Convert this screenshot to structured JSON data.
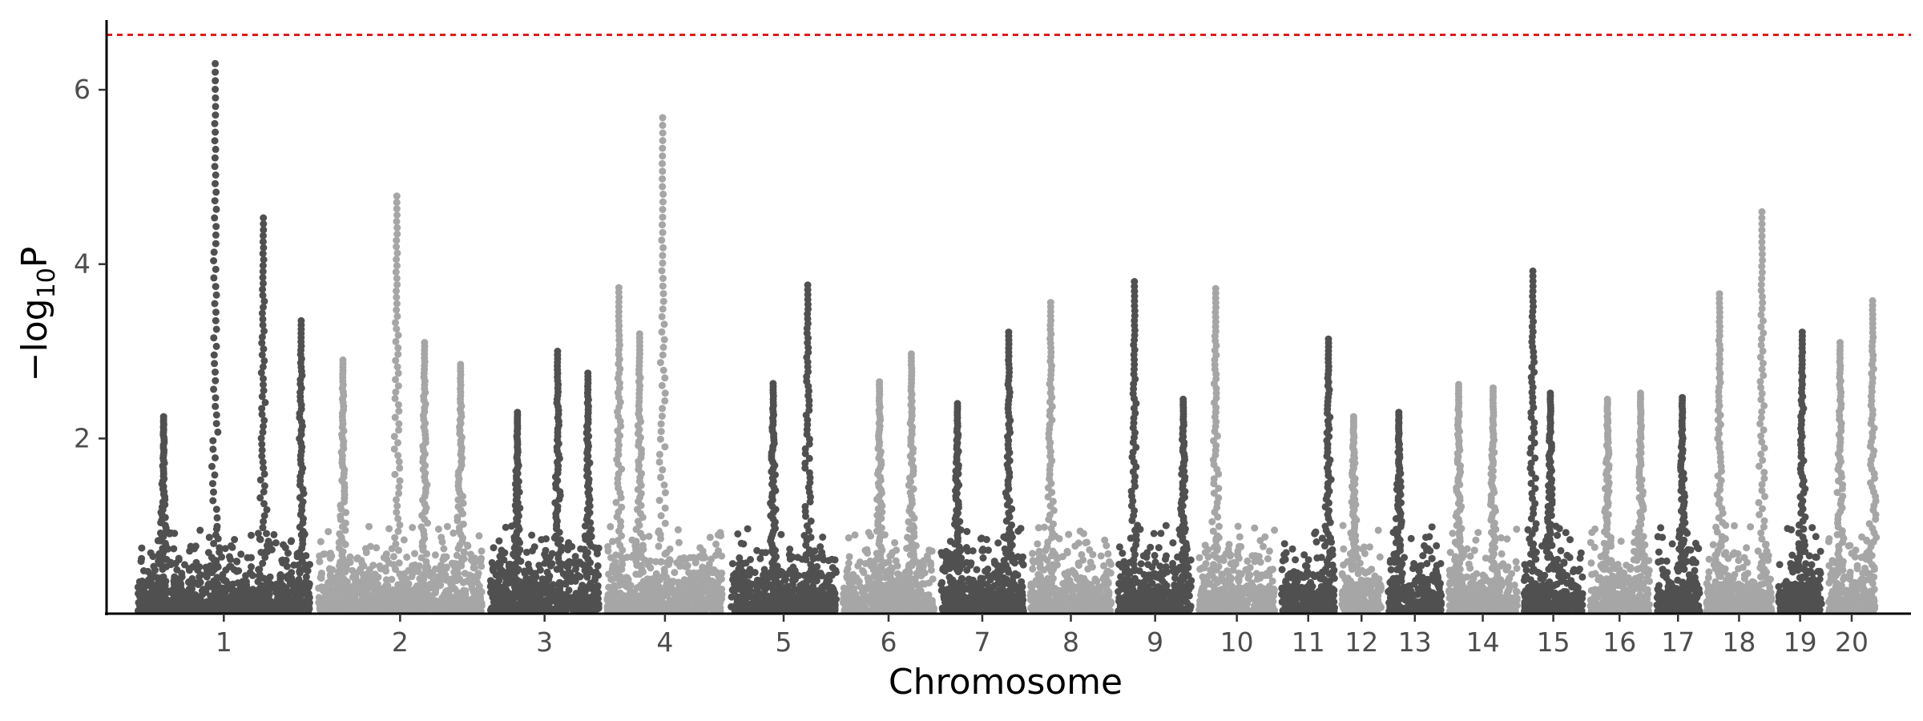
{
  "chart_data": {
    "type": "scatter",
    "subtype": "manhattan",
    "title": "",
    "xlabel": "Chromosome",
    "ylabel_parts": [
      "−log",
      "10",
      "P"
    ],
    "ylim": [
      0,
      6.8
    ],
    "yticks": [
      2,
      4,
      6
    ],
    "grid": false,
    "legend": "none",
    "threshold": {
      "value": 6.63,
      "color": "#e41a1c",
      "style": "dashed"
    },
    "colors": {
      "odd": "#505050",
      "even": "#a6a6a6",
      "axis": "#000000"
    },
    "chromosomes": [
      {
        "label": "1",
        "start": 0,
        "end": 1.0,
        "peaks": [
          {
            "pos": 0.45,
            "top": 6.3
          },
          {
            "pos": 0.15,
            "top": 2.25
          },
          {
            "pos": 0.73,
            "top": 4.53
          },
          {
            "pos": 0.95,
            "top": 3.35
          }
        ]
      },
      {
        "label": "2",
        "start": 1.05,
        "end": 2.0,
        "peaks": [
          {
            "pos": 0.48,
            "top": 4.78
          },
          {
            "pos": 0.15,
            "top": 2.9
          },
          {
            "pos": 0.65,
            "top": 3.1
          },
          {
            "pos": 0.87,
            "top": 2.85
          }
        ]
      },
      {
        "label": "3",
        "start": 2.05,
        "end": 2.68,
        "peaks": [
          {
            "pos": 0.62,
            "top": 3.0
          },
          {
            "pos": 0.9,
            "top": 2.75
          },
          {
            "pos": 0.25,
            "top": 2.3
          }
        ]
      },
      {
        "label": "4",
        "start": 2.73,
        "end": 3.4,
        "peaks": [
          {
            "pos": 0.1,
            "top": 3.73
          },
          {
            "pos": 0.48,
            "top": 5.68
          },
          {
            "pos": 0.28,
            "top": 3.2
          }
        ]
      },
      {
        "label": "5",
        "start": 3.45,
        "end": 4.06,
        "peaks": [
          {
            "pos": 0.73,
            "top": 3.76
          },
          {
            "pos": 0.4,
            "top": 2.63
          }
        ]
      },
      {
        "label": "6",
        "start": 4.1,
        "end": 4.63,
        "peaks": [
          {
            "pos": 0.4,
            "top": 2.65
          },
          {
            "pos": 0.75,
            "top": 2.97
          }
        ]
      },
      {
        "label": "7",
        "start": 4.67,
        "end": 5.15,
        "peaks": [
          {
            "pos": 0.82,
            "top": 3.22
          },
          {
            "pos": 0.2,
            "top": 2.4
          }
        ]
      },
      {
        "label": "8",
        "start": 5.19,
        "end": 5.66,
        "peaks": [
          {
            "pos": 0.25,
            "top": 3.56
          }
        ]
      },
      {
        "label": "9",
        "start": 5.7,
        "end": 6.13,
        "peaks": [
          {
            "pos": 0.22,
            "top": 3.8
          },
          {
            "pos": 0.88,
            "top": 2.45
          }
        ]
      },
      {
        "label": "10",
        "start": 6.17,
        "end": 6.61,
        "peaks": [
          {
            "pos": 0.22,
            "top": 3.72
          }
        ]
      },
      {
        "label": "11",
        "start": 6.65,
        "end": 6.96,
        "peaks": [
          {
            "pos": 0.88,
            "top": 3.14
          }
        ]
      },
      {
        "label": "12",
        "start": 7.0,
        "end": 7.23,
        "peaks": [
          {
            "pos": 0.3,
            "top": 2.25
          }
        ]
      },
      {
        "label": "13",
        "start": 7.27,
        "end": 7.58,
        "peaks": [
          {
            "pos": 0.2,
            "top": 2.3
          }
        ]
      },
      {
        "label": "14",
        "start": 7.62,
        "end": 8.02,
        "peaks": [
          {
            "pos": 0.15,
            "top": 2.62
          },
          {
            "pos": 0.65,
            "top": 2.58
          }
        ]
      },
      {
        "label": "15",
        "start": 8.06,
        "end": 8.4,
        "peaks": [
          {
            "pos": 0.15,
            "top": 3.92
          },
          {
            "pos": 0.45,
            "top": 2.52
          }
        ]
      },
      {
        "label": "16",
        "start": 8.44,
        "end": 8.79,
        "peaks": [
          {
            "pos": 0.3,
            "top": 2.45
          },
          {
            "pos": 0.85,
            "top": 2.52
          }
        ]
      },
      {
        "label": "17",
        "start": 8.83,
        "end": 9.08,
        "peaks": [
          {
            "pos": 0.6,
            "top": 2.47
          }
        ]
      },
      {
        "label": "18",
        "start": 9.12,
        "end": 9.5,
        "peaks": [
          {
            "pos": 0.2,
            "top": 3.66
          },
          {
            "pos": 0.85,
            "top": 4.6
          }
        ]
      },
      {
        "label": "19",
        "start": 9.54,
        "end": 9.79,
        "peaks": [
          {
            "pos": 0.55,
            "top": 3.22
          }
        ]
      },
      {
        "label": "20",
        "start": 9.83,
        "end": 10.1,
        "peaks": [
          {
            "pos": 0.25,
            "top": 3.1
          },
          {
            "pos": 0.95,
            "top": 3.58
          }
        ]
      }
    ]
  }
}
